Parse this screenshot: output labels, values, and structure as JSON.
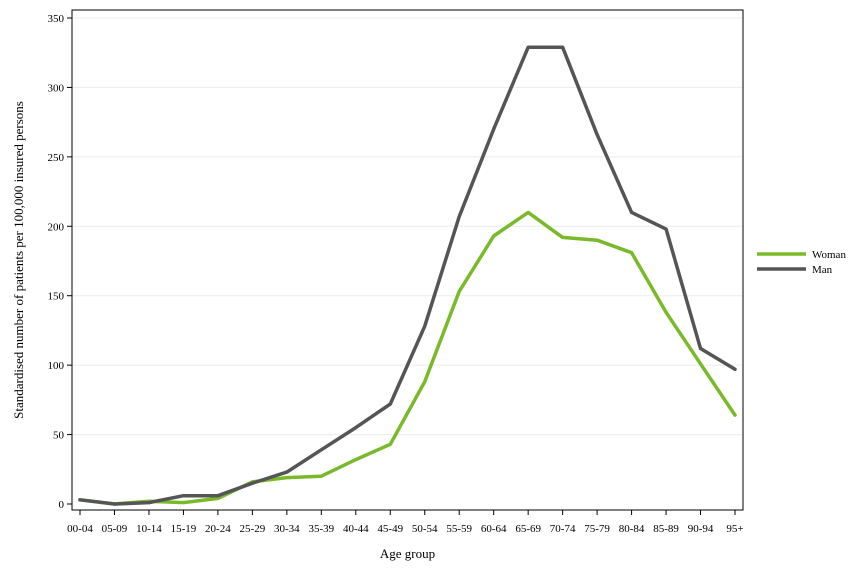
{
  "chart_data": {
    "type": "line",
    "title": "",
    "xlabel": "Age group",
    "ylabel": "Standardised number of patients per 100,000 insured persons",
    "ylim": [
      0,
      350
    ],
    "yticks": [
      0,
      50,
      100,
      150,
      200,
      250,
      300,
      350
    ],
    "grid": "horizontal",
    "legend_position": "right",
    "categories": [
      "00-04",
      "05-09",
      "10-14",
      "15-19",
      "20-24",
      "25-29",
      "30-34",
      "35-39",
      "40-44",
      "45-49",
      "50-54",
      "55-59",
      "60-64",
      "65-69",
      "70-74",
      "75-79",
      "80-84",
      "85-89",
      "90-94",
      "95+"
    ],
    "series": [
      {
        "name": "Woman",
        "color": "#7ab929",
        "values": [
          3,
          0,
          2,
          1,
          4,
          16,
          19,
          20,
          32,
          43,
          88,
          153,
          193,
          210,
          192,
          190,
          181,
          138,
          101,
          64
        ]
      },
      {
        "name": "Man",
        "color": "#555555",
        "values": [
          3,
          0,
          1,
          6,
          6,
          15,
          23,
          39,
          55,
          72,
          128,
          207,
          270,
          329,
          329,
          266,
          210,
          198,
          112,
          97
        ]
      }
    ]
  }
}
